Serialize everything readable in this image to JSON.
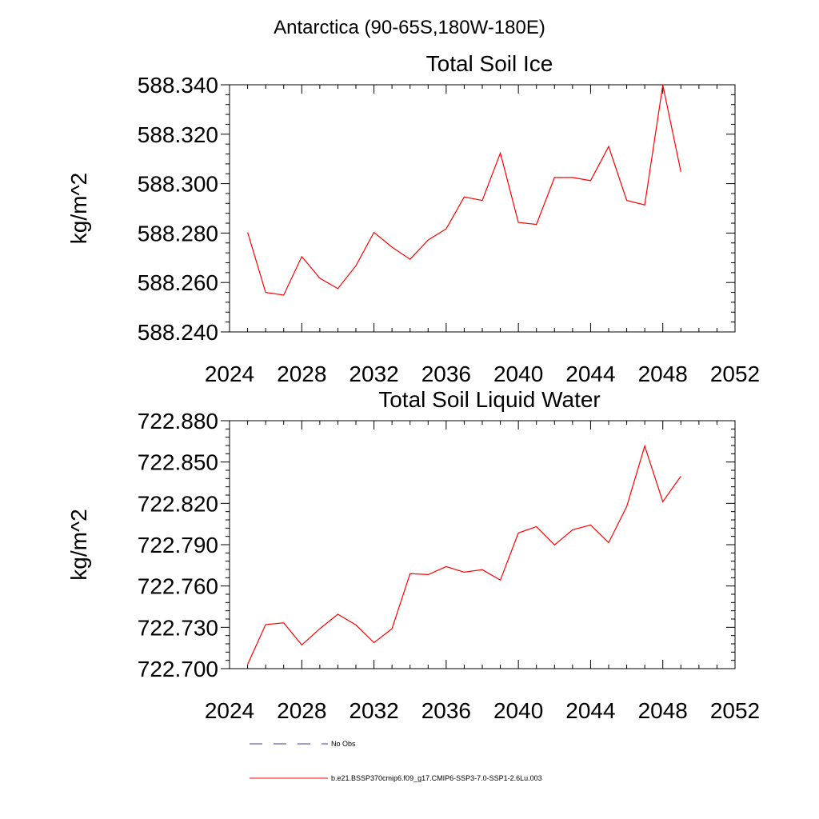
{
  "page_title": "Antarctica (90-65S,180W-180E)",
  "legend": {
    "items": [
      {
        "label": "No Obs",
        "style": "dashed",
        "color": "#3b3b8f"
      },
      {
        "label": "b.e21.BSSP370cmip6.f09_g17.CMIP6-SSP3-7.0-SSP1-2.6Lu.003",
        "style": "solid",
        "color": "#ff0000"
      }
    ]
  },
  "chart_data": [
    {
      "type": "line",
      "title": "Total Soil Ice",
      "xlabel": "",
      "ylabel": "kg/m^2",
      "xlim": [
        2024,
        2052
      ],
      "ylim": [
        588.24,
        588.34
      ],
      "x_ticks": [
        "2024",
        "2028",
        "2032",
        "2036",
        "2040",
        "2044",
        "2048",
        "2052"
      ],
      "y_ticks": [
        "588.240",
        "588.260",
        "588.280",
        "588.300",
        "588.320",
        "588.340"
      ],
      "grid": false,
      "series": [
        {
          "color": "#ff0000",
          "x": [
            2025,
            2026,
            2027,
            2028,
            2029,
            2030,
            2031,
            2032,
            2033,
            2034,
            2035,
            2036,
            2037,
            2038,
            2039,
            2040,
            2041,
            2042,
            2043,
            2044,
            2045,
            2046,
            2047,
            2048,
            2049
          ],
          "y": [
            588.2803,
            588.256,
            588.2549,
            588.2705,
            588.2617,
            588.2575,
            588.2668,
            588.2803,
            588.2743,
            588.2694,
            588.2772,
            588.2817,
            588.2946,
            588.2932,
            588.3124,
            588.2843,
            588.2835,
            588.3025,
            588.3025,
            588.3012,
            588.315,
            588.2932,
            588.2914,
            588.3399,
            588.3048
          ]
        }
      ]
    },
    {
      "type": "line",
      "title": "Total Soil Liquid Water",
      "xlabel": "",
      "ylabel": "kg/m^2",
      "xlim": [
        2024,
        2052
      ],
      "ylim": [
        722.7,
        722.88
      ],
      "x_ticks": [
        "2024",
        "2028",
        "2032",
        "2036",
        "2040",
        "2044",
        "2048",
        "2052"
      ],
      "y_ticks": [
        "722.700",
        "722.730",
        "722.760",
        "722.790",
        "722.820",
        "722.850",
        "722.880"
      ],
      "grid": false,
      "series": [
        {
          "color": "#ff0000",
          "x": [
            2025,
            2026,
            2027,
            2028,
            2029,
            2030,
            2031,
            2032,
            2033,
            2034,
            2035,
            2036,
            2037,
            2038,
            2039,
            2040,
            2041,
            2042,
            2043,
            2044,
            2045,
            2046,
            2047,
            2048,
            2049
          ],
          "y": [
            722.703,
            722.732,
            722.7332,
            722.7172,
            722.729,
            722.7395,
            722.7317,
            722.7189,
            722.729,
            722.7689,
            722.7683,
            722.7741,
            722.77,
            722.7718,
            722.7643,
            722.7985,
            722.8031,
            722.7898,
            722.8008,
            722.8043,
            722.7915,
            722.8177,
            722.8616,
            722.8212,
            722.8397
          ]
        }
      ]
    }
  ]
}
